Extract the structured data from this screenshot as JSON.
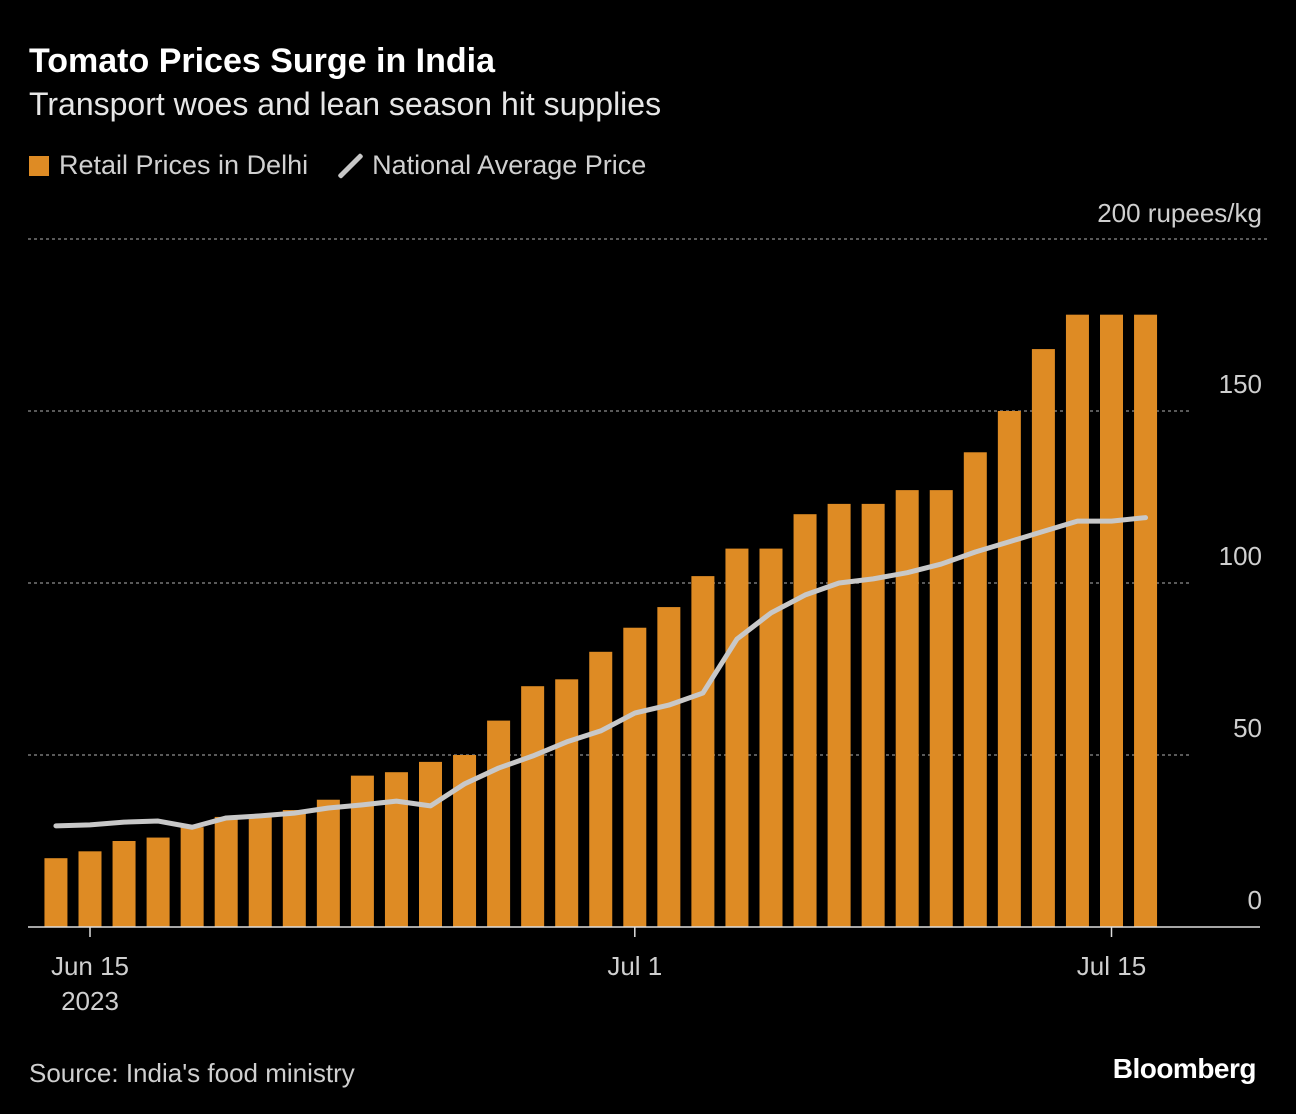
{
  "header": {
    "title": "Tomato Prices Surge in India",
    "subtitle": "Transport woes and lean season hit supplies"
  },
  "legend": [
    {
      "label": "Retail Prices in Delhi",
      "color": "#de8b24",
      "icon": "square"
    },
    {
      "label": "National Average Price",
      "color": "#c8c8c8",
      "icon": "line"
    }
  ],
  "footer": {
    "source": "Source: India's food ministry",
    "brand": "Bloomberg"
  },
  "chart_data": {
    "type": "bar+line",
    "title": "Tomato Prices Surge in India",
    "ylabel": "rupees/kg",
    "ylim": [
      0,
      200
    ],
    "yticks": [
      {
        "value": 0,
        "label": "0"
      },
      {
        "value": 50,
        "label": "50"
      },
      {
        "value": 100,
        "label": "100"
      },
      {
        "value": 150,
        "label": "150"
      },
      {
        "value": 200,
        "label": "200 rupees/kg"
      }
    ],
    "xticks": [
      {
        "date": "2023-06-15",
        "label": "Jun 15",
        "sublabel": "2023"
      },
      {
        "date": "2023-07-01",
        "label": "Jul 1"
      },
      {
        "date": "2023-07-15",
        "label": "Jul 15"
      }
    ],
    "grid": true,
    "legend_position": "top-left",
    "x": [
      "2023-06-14",
      "2023-06-15",
      "2023-06-16",
      "2023-06-17",
      "2023-06-18",
      "2023-06-19",
      "2023-06-20",
      "2023-06-21",
      "2023-06-22",
      "2023-06-23",
      "2023-06-24",
      "2023-06-25",
      "2023-06-26",
      "2023-06-27",
      "2023-06-28",
      "2023-06-29",
      "2023-06-30",
      "2023-07-01",
      "2023-07-02",
      "2023-07-03",
      "2023-07-04",
      "2023-07-05",
      "2023-07-06",
      "2023-07-07",
      "2023-07-08",
      "2023-07-09",
      "2023-07-10",
      "2023-07-11",
      "2023-07-12",
      "2023-07-13",
      "2023-07-14",
      "2023-07-15",
      "2023-07-16"
    ],
    "series": [
      {
        "name": "Retail Prices in Delhi",
        "type": "bar",
        "color": "#de8b24",
        "values": [
          20,
          22,
          25,
          26,
          29,
          32,
          32.5,
          34,
          37,
          44,
          45,
          48,
          50,
          60,
          70,
          72,
          80,
          87,
          93,
          102,
          110,
          110,
          120,
          123,
          123,
          127,
          127,
          138,
          150,
          168,
          178,
          178,
          178
        ]
      },
      {
        "name": "National Average Price",
        "type": "line",
        "color": "#c8c8c8",
        "values": [
          29.4,
          29.7,
          30.5,
          30.8,
          29,
          31.7,
          32.3,
          33.1,
          34.6,
          35.5,
          36.6,
          35.2,
          41.6,
          46.2,
          49.7,
          53.8,
          57,
          62.2,
          64.5,
          68,
          83.7,
          91.3,
          96.5,
          100,
          101.2,
          103,
          105.5,
          109,
          112,
          115,
          118,
          118,
          119
        ]
      }
    ]
  }
}
